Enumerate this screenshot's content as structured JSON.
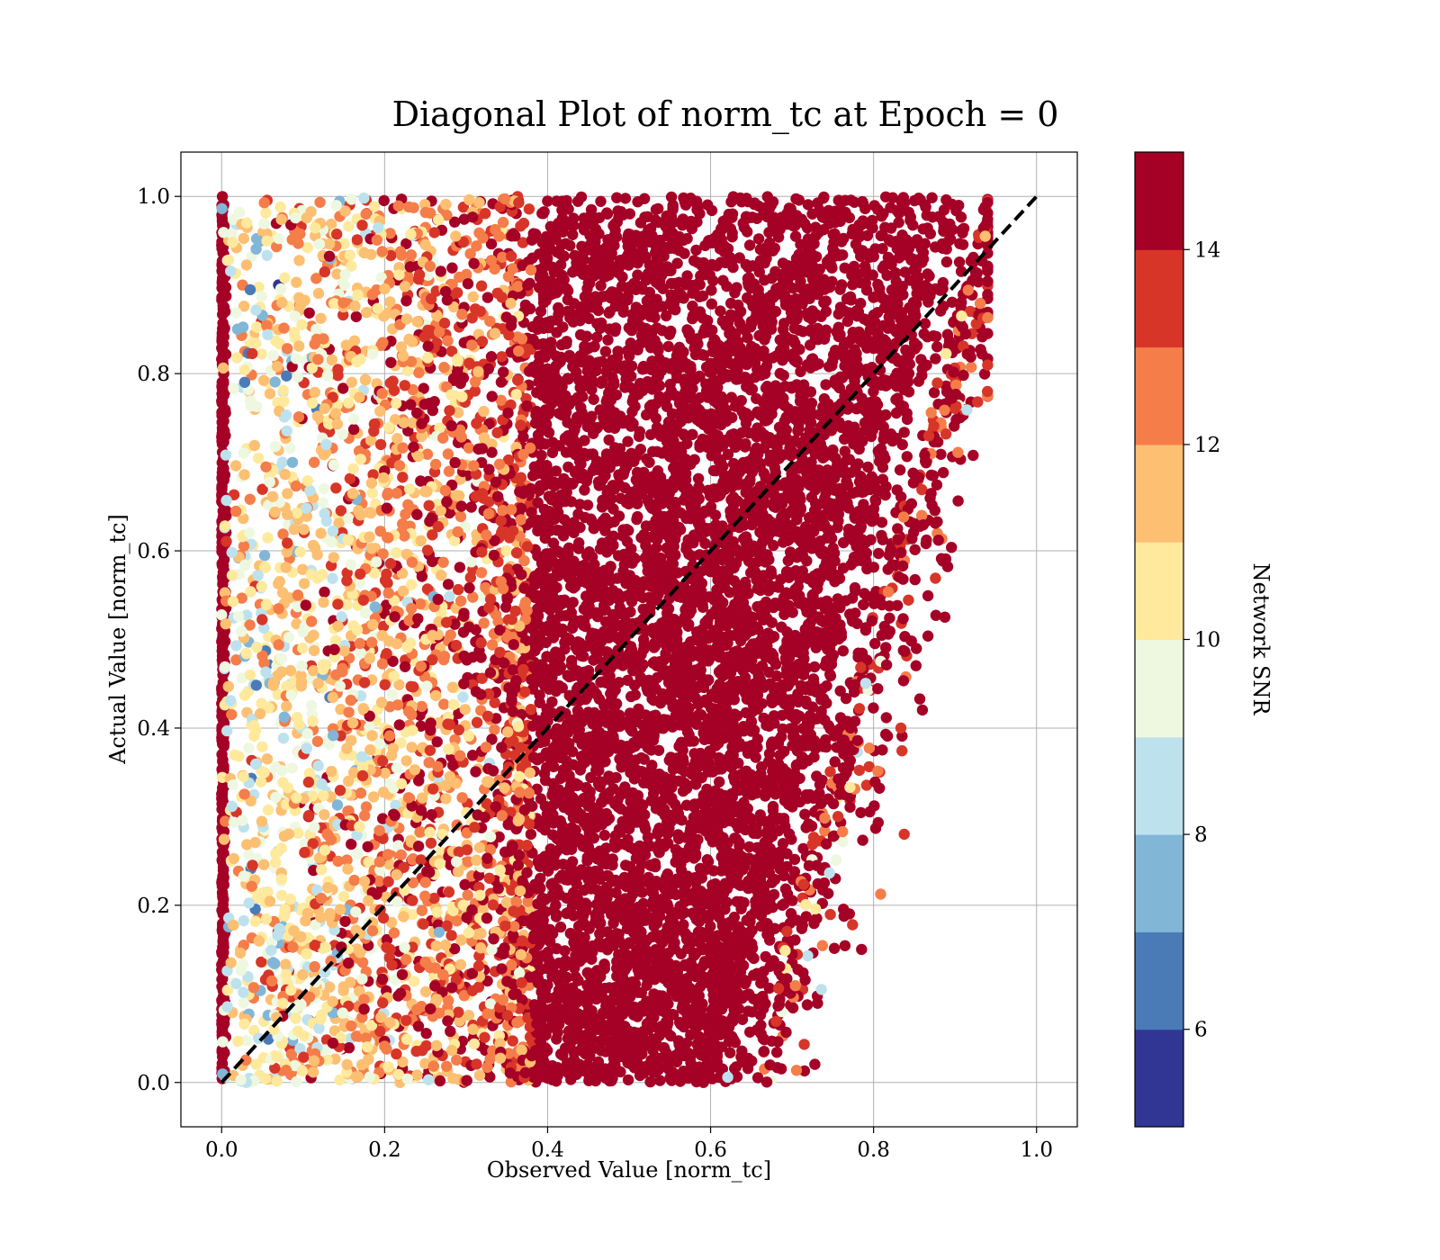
{
  "chart_data": {
    "type": "scatter",
    "title": "Diagonal Plot of norm_tc at Epoch = 0",
    "xlabel": "Observed Value [norm_tc]",
    "ylabel": "Actual Value [norm_tc]",
    "xlim": [
      -0.05,
      1.05
    ],
    "ylim": [
      -0.05,
      1.05
    ],
    "xticks": [
      "0.0",
      "0.2",
      "0.4",
      "0.6",
      "0.8",
      "1.0"
    ],
    "yticks": [
      "0.0",
      "0.2",
      "0.4",
      "0.6",
      "0.8",
      "1.0"
    ],
    "grid": true,
    "reference_line": {
      "style": "dashed",
      "color": "#000000",
      "x": [
        0,
        1
      ],
      "y": [
        0,
        1
      ]
    },
    "colorbar": {
      "label": "Network SNR",
      "range": [
        5,
        15
      ],
      "ticks": [
        "6",
        "8",
        "10",
        "12",
        "14"
      ],
      "bins": [
        {
          "from": 5,
          "to": 6,
          "color": "#313695"
        },
        {
          "from": 6,
          "to": 7,
          "color": "#4a7bb7"
        },
        {
          "from": 7,
          "to": 8,
          "color": "#81b6d7"
        },
        {
          "from": 8,
          "to": 9,
          "color": "#bde2ee"
        },
        {
          "from": 9,
          "to": 10,
          "color": "#eef8e1"
        },
        {
          "from": 10,
          "to": 11,
          "color": "#fee99d"
        },
        {
          "from": 11,
          "to": 12,
          "color": "#fdbf71"
        },
        {
          "from": 12,
          "to": 13,
          "color": "#f57d4a"
        },
        {
          "from": 13,
          "to": 14,
          "color": "#d83529"
        },
        {
          "from": 14,
          "to": 15,
          "color": "#a50026"
        }
      ]
    },
    "scatter_summary": {
      "x_range": [
        0.0,
        0.94
      ],
      "y_range": [
        0.0,
        1.0
      ],
      "dense_core_x": [
        0.38,
        0.72
      ],
      "dominant_snr": "14-15",
      "low_snr_region_x": [
        0.0,
        0.3
      ]
    }
  }
}
